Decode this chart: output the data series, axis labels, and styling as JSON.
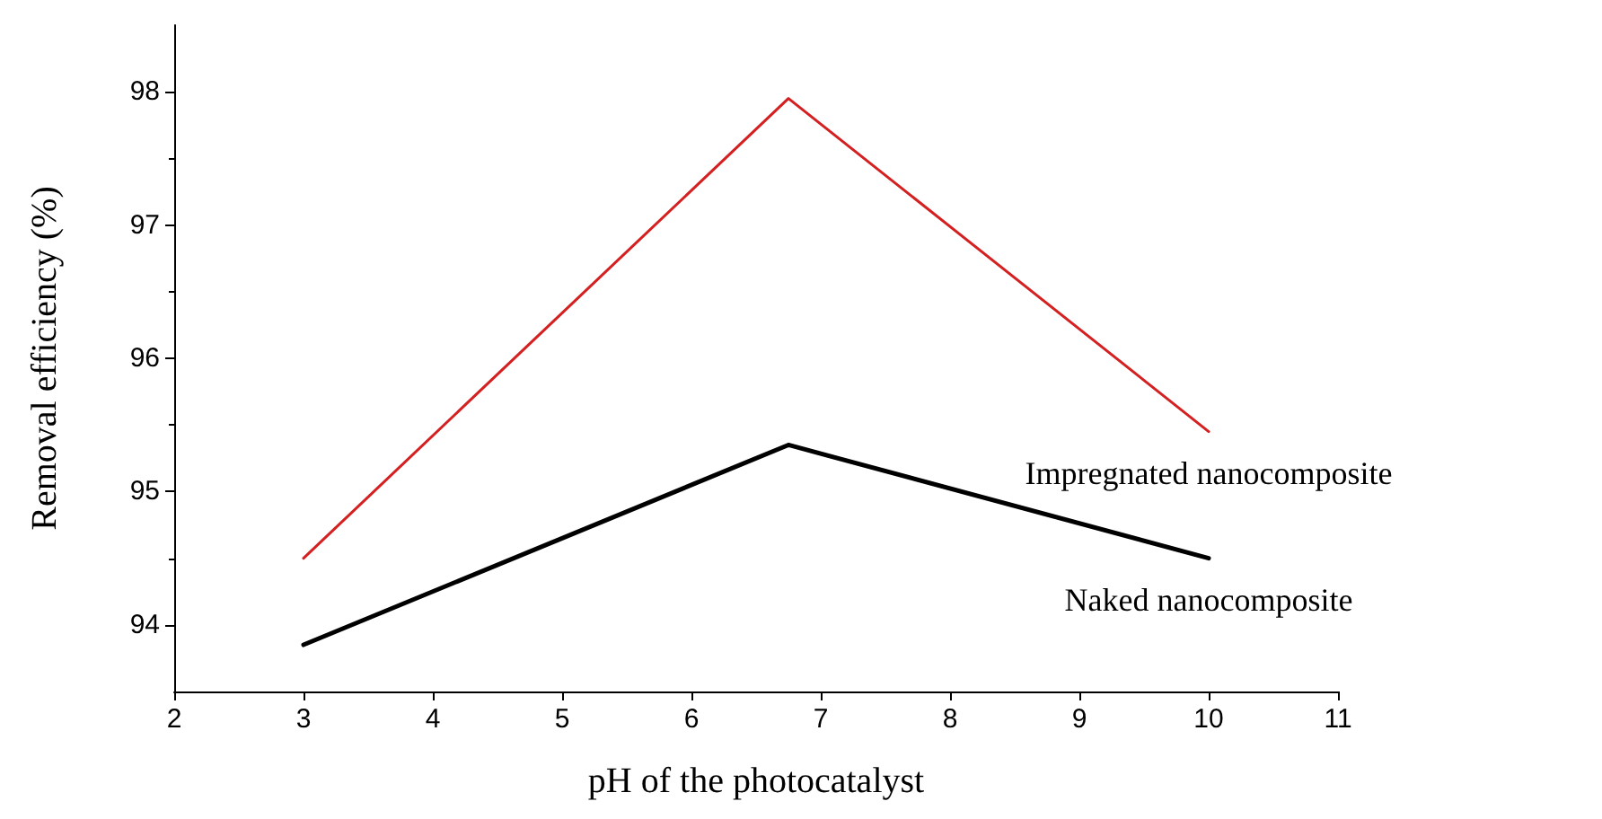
{
  "chart_data": {
    "type": "line",
    "xlabel": "pH of the photocatalyst",
    "ylabel": "Removal efficiency (%)",
    "x": [
      3,
      6.75,
      10
    ],
    "series": [
      {
        "name": "Impregnated nanocomposite",
        "color": "#d42020",
        "values": [
          94.5,
          97.95,
          95.45
        ]
      },
      {
        "name": "Naked nanocomposite",
        "color": "#000000",
        "values": [
          93.85,
          95.35,
          94.5
        ]
      }
    ],
    "xlim": [
      2,
      11
    ],
    "xticks": [
      2,
      3,
      4,
      5,
      6,
      7,
      8,
      9,
      10,
      11
    ],
    "ylim": [
      93.5,
      98.5
    ],
    "yticks": [
      94,
      95,
      96,
      97,
      98
    ],
    "grid": false,
    "legend": false,
    "marker": "none",
    "line_style": "solid"
  }
}
